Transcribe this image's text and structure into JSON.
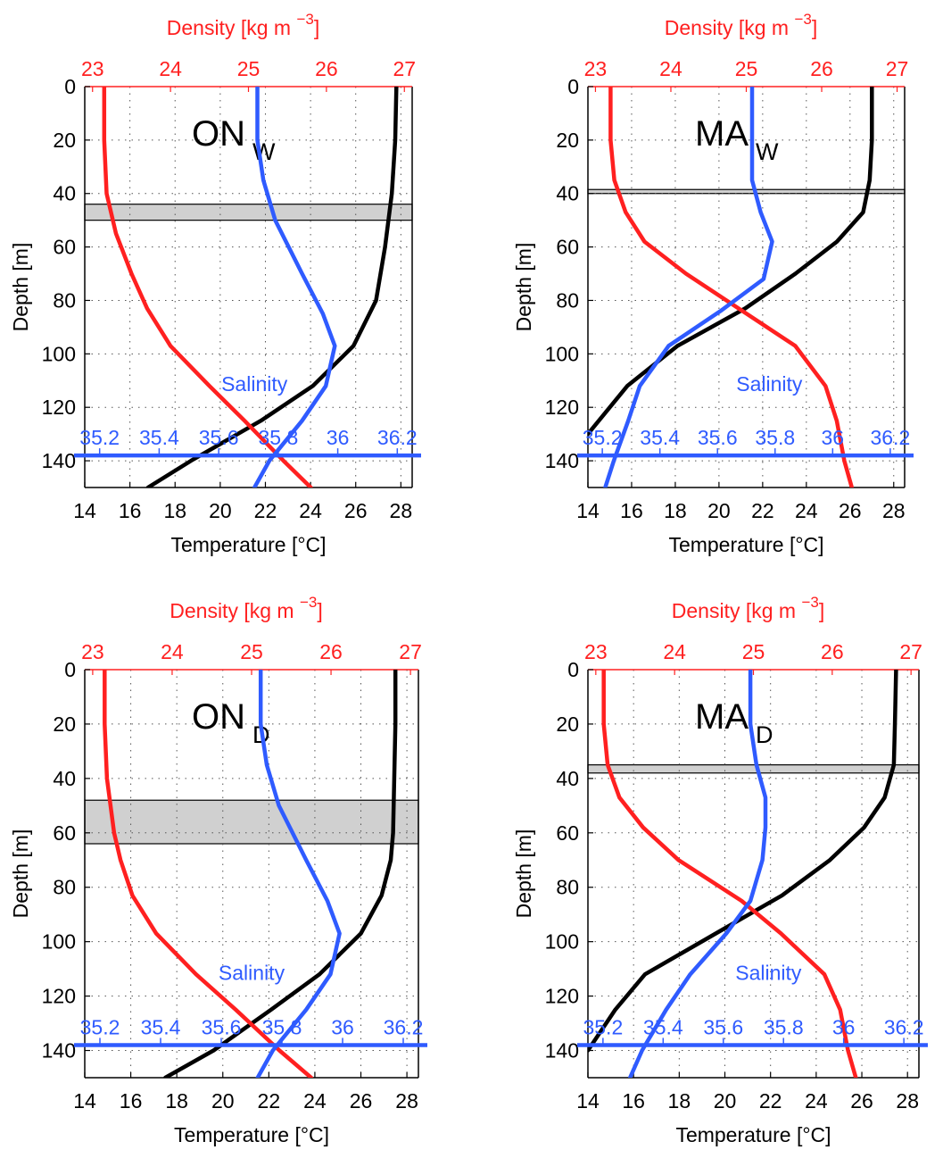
{
  "figure": {
    "colors": {
      "temperature": "#000000",
      "density": "#ff2020",
      "salinity": "#2f5bff",
      "mixed_layer": "#d0d0d0"
    }
  },
  "chart_data": [
    {
      "type": "line",
      "panel_label": "ON",
      "panel_subscript": "W",
      "xlabel": "Temperature [°C]",
      "ylabel": "Depth [m]",
      "density_label": "Density [kg m",
      "density_exponent": "−3",
      "density_label_end": "]",
      "salinity_label": "Salinity",
      "xlim": [
        14,
        28.5
      ],
      "xticks": [
        "14",
        "16",
        "18",
        "20",
        "22",
        "24",
        "26",
        "28"
      ],
      "ylim": [
        150,
        0
      ],
      "y_reversed": true,
      "yticks": [
        "0",
        "20",
        "40",
        "60",
        "80",
        "100",
        "120",
        "140"
      ],
      "density_lim": [
        22.9,
        27.1
      ],
      "density_ticks": [
        "23",
        "24",
        "25",
        "26",
        "27"
      ],
      "salinity_lim": [
        35.15,
        36.25
      ],
      "salinity_axis_depth": 138,
      "salinity_ticks": [
        "35.2",
        "35.4",
        "35.6",
        "35.8",
        "36",
        "36.2"
      ],
      "salinity_label_depth": 114,
      "salinity_label_sal": 35.72,
      "mixed_layer": [
        44,
        50
      ],
      "grid": true,
      "series": [
        {
          "name": "Temperature",
          "axis": "temperature",
          "depth": [
            0,
            20,
            40,
            60,
            80,
            97,
            112,
            125,
            140,
            150
          ],
          "values": [
            27.8,
            27.75,
            27.6,
            27.3,
            26.9,
            25.9,
            24.1,
            21.8,
            18.7,
            16.8
          ]
        },
        {
          "name": "Density",
          "axis": "density",
          "depth": [
            0,
            20,
            40,
            55,
            70,
            83,
            97,
            112,
            125,
            140,
            150
          ],
          "values": [
            23.15,
            23.15,
            23.18,
            23.3,
            23.5,
            23.7,
            24.0,
            24.5,
            24.95,
            25.45,
            25.8
          ]
        },
        {
          "name": "Salinity",
          "axis": "salinity",
          "depth": [
            0,
            20,
            35,
            50,
            70,
            85,
            97,
            112,
            125,
            140,
            150
          ],
          "values": [
            35.73,
            35.73,
            35.75,
            35.79,
            35.88,
            35.95,
            35.99,
            35.96,
            35.88,
            35.77,
            35.72
          ]
        }
      ]
    },
    {
      "type": "line",
      "panel_label": "MA",
      "panel_subscript": "W",
      "xlabel": "Temperature [°C]",
      "ylabel": "Depth [m]",
      "density_label": "Density [kg m",
      "density_exponent": "−3",
      "density_label_end": "]",
      "salinity_label": "Salinity",
      "xlim": [
        14,
        28.5
      ],
      "xticks": [
        "14",
        "16",
        "18",
        "20",
        "22",
        "24",
        "26",
        "28"
      ],
      "ylim": [
        150,
        0
      ],
      "y_reversed": true,
      "yticks": [
        "0",
        "20",
        "40",
        "60",
        "80",
        "100",
        "120",
        "140"
      ],
      "density_lim": [
        22.9,
        27.1
      ],
      "density_ticks": [
        "23",
        "24",
        "25",
        "26",
        "27"
      ],
      "salinity_lim": [
        35.15,
        36.25
      ],
      "salinity_axis_depth": 138,
      "salinity_ticks": [
        "35.2",
        "35.4",
        "35.6",
        "35.8",
        "36",
        "36.2"
      ],
      "salinity_label_depth": 114,
      "salinity_label_sal": 35.78,
      "mixed_layer": [
        38.5,
        40
      ],
      "grid": true,
      "series": [
        {
          "name": "Temperature",
          "axis": "temperature",
          "depth": [
            0,
            20,
            35,
            47,
            58,
            70,
            83,
            97,
            112,
            130
          ],
          "values": [
            27.0,
            27.0,
            26.9,
            26.6,
            25.4,
            23.5,
            21.2,
            18.1,
            15.8,
            14.0
          ]
        },
        {
          "name": "Density",
          "axis": "density",
          "depth": [
            0,
            20,
            35,
            47,
            58,
            70,
            84,
            97,
            112,
            125,
            140,
            150
          ],
          "values": [
            23.2,
            23.2,
            23.25,
            23.4,
            23.65,
            24.2,
            24.95,
            25.65,
            26.05,
            26.2,
            26.3,
            26.4
          ]
        },
        {
          "name": "Salinity",
          "axis": "salinity",
          "depth": [
            0,
            20,
            35,
            47,
            58,
            72,
            84,
            97,
            112,
            125,
            140,
            150
          ],
          "values": [
            35.72,
            35.72,
            35.72,
            35.75,
            35.79,
            35.76,
            35.61,
            35.43,
            35.33,
            35.29,
            35.24,
            35.21
          ]
        }
      ]
    },
    {
      "type": "line",
      "panel_label": "ON",
      "panel_subscript": "D",
      "xlabel": "Temperature [°C]",
      "ylabel": "Depth [m]",
      "density_label": "Density [kg m",
      "density_exponent": "−3",
      "density_label_end": "]",
      "salinity_label": "Salinity",
      "xlim": [
        14,
        28.5
      ],
      "xticks": [
        "14",
        "16",
        "18",
        "20",
        "22",
        "24",
        "26",
        "28"
      ],
      "ylim": [
        150,
        0
      ],
      "y_reversed": true,
      "yticks": [
        "0",
        "20",
        "40",
        "60",
        "80",
        "100",
        "120",
        "140"
      ],
      "density_lim": [
        22.9,
        27.1
      ],
      "density_ticks": [
        "23",
        "24",
        "25",
        "26",
        "27"
      ],
      "salinity_lim": [
        35.15,
        36.25
      ],
      "salinity_axis_depth": 138,
      "salinity_ticks": [
        "35.2",
        "35.4",
        "35.6",
        "35.8",
        "36",
        "36.2"
      ],
      "salinity_label_depth": 114,
      "salinity_label_sal": 35.7,
      "mixed_layer": [
        48,
        64
      ],
      "grid": true,
      "series": [
        {
          "name": "Temperature",
          "axis": "temperature",
          "depth": [
            0,
            20,
            40,
            60,
            70,
            83,
            97,
            112,
            125,
            140,
            150
          ],
          "values": [
            27.5,
            27.5,
            27.45,
            27.4,
            27.3,
            26.9,
            26.0,
            24.2,
            22.1,
            19.6,
            17.5
          ]
        },
        {
          "name": "Density",
          "axis": "density",
          "depth": [
            0,
            20,
            40,
            60,
            70,
            83,
            97,
            112,
            125,
            140,
            150
          ],
          "values": [
            23.15,
            23.15,
            23.18,
            23.27,
            23.35,
            23.5,
            23.8,
            24.3,
            24.8,
            25.35,
            25.75
          ]
        },
        {
          "name": "Salinity",
          "axis": "salinity",
          "depth": [
            0,
            20,
            35,
            50,
            70,
            85,
            97,
            112,
            125,
            140,
            150
          ],
          "values": [
            35.73,
            35.73,
            35.75,
            35.79,
            35.88,
            35.95,
            35.99,
            35.96,
            35.88,
            35.77,
            35.72
          ]
        }
      ]
    },
    {
      "type": "line",
      "panel_label": "MA",
      "panel_subscript": "D",
      "xlabel": "Temperature [°C]",
      "ylabel": "Depth [m]",
      "density_label": "Density [kg m",
      "density_exponent": "−3",
      "density_label_end": "]",
      "salinity_label": "Salinity",
      "xlim": [
        14,
        28.5
      ],
      "xticks": [
        "14",
        "16",
        "18",
        "20",
        "22",
        "24",
        "26",
        "28"
      ],
      "ylim": [
        150,
        0
      ],
      "y_reversed": true,
      "yticks": [
        "0",
        "20",
        "40",
        "60",
        "80",
        "100",
        "120",
        "140"
      ],
      "density_lim": [
        22.9,
        27.1
      ],
      "density_ticks": [
        "23",
        "24",
        "25",
        "26",
        "27"
      ],
      "salinity_lim": [
        35.15,
        36.25
      ],
      "salinity_axis_depth": 138,
      "salinity_ticks": [
        "35.2",
        "35.4",
        "35.6",
        "35.8",
        "36",
        "36.2"
      ],
      "salinity_label_depth": 114,
      "salinity_label_sal": 35.75,
      "mixed_layer": [
        35,
        38
      ],
      "grid": true,
      "series": [
        {
          "name": "Temperature",
          "axis": "temperature",
          "depth": [
            0,
            20,
            35,
            47,
            58,
            70,
            83,
            97,
            112,
            125,
            140
          ],
          "values": [
            27.5,
            27.45,
            27.4,
            27.0,
            26.1,
            24.6,
            22.5,
            19.6,
            16.5,
            15.2,
            14.0
          ]
        },
        {
          "name": "Density",
          "axis": "density",
          "depth": [
            0,
            20,
            35,
            47,
            58,
            70,
            85,
            97,
            112,
            125,
            140,
            150
          ],
          "values": [
            23.1,
            23.1,
            23.15,
            23.3,
            23.6,
            24.05,
            24.85,
            25.35,
            25.9,
            26.1,
            26.2,
            26.3
          ]
        },
        {
          "name": "Salinity",
          "axis": "salinity",
          "depth": [
            0,
            20,
            35,
            47,
            58,
            70,
            85,
            97,
            112,
            125,
            140,
            150
          ],
          "values": [
            35.69,
            35.69,
            35.71,
            35.74,
            35.74,
            35.73,
            35.69,
            35.61,
            35.49,
            35.41,
            35.33,
            35.29
          ]
        }
      ]
    }
  ]
}
